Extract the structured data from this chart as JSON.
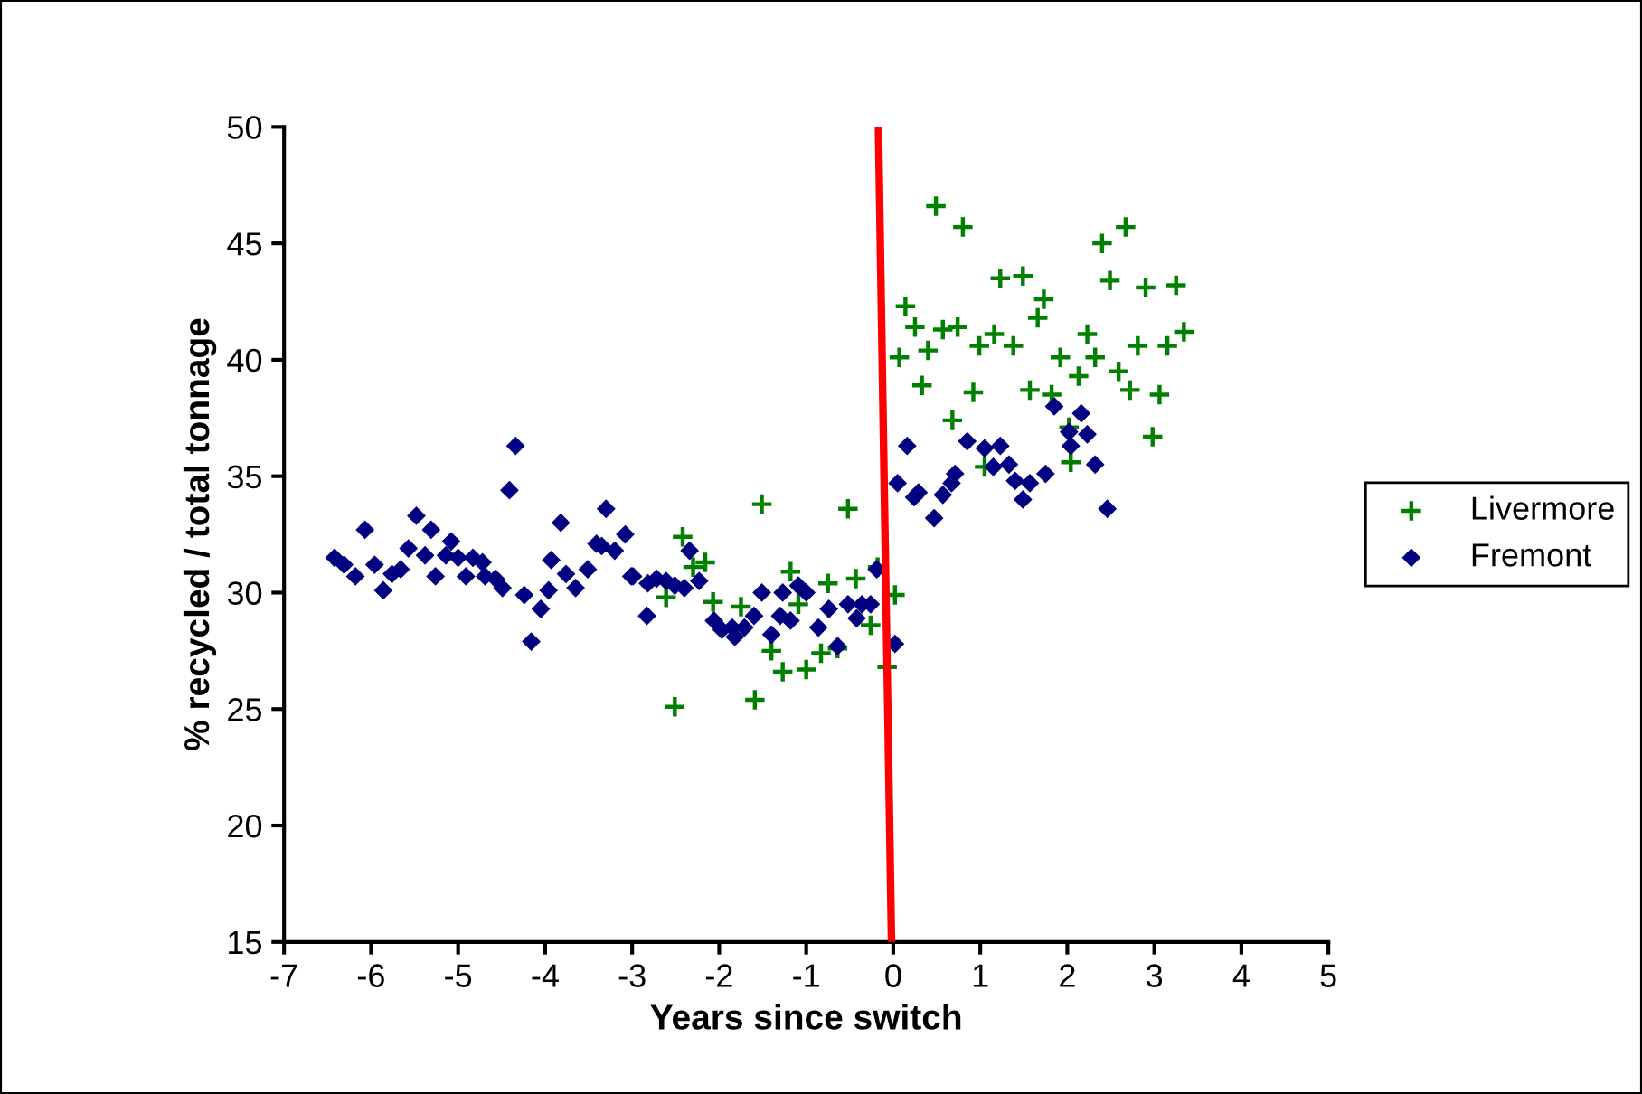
{
  "chart_data": {
    "type": "scatter",
    "xlabel": "Years since switch",
    "ylabel": "% recycled / total tonnage",
    "xlim": [
      -7,
      5
    ],
    "xticks": [
      -7,
      -6,
      -5,
      -4,
      -3,
      -2,
      -1,
      0,
      1,
      2,
      3,
      4,
      5
    ],
    "ylim": [
      15,
      50
    ],
    "yticks": [
      15,
      20,
      25,
      30,
      35,
      40,
      45,
      50
    ],
    "grid": false,
    "legend": "right",
    "series": [
      {
        "name": "Livermore",
        "color": "#008000",
        "marker": "cross",
        "x": [
          -1.51,
          -0.52,
          -2.42,
          -2.3,
          -2.16,
          -2.61,
          -1.18,
          -0.75,
          -0.43,
          -0.18,
          0.02,
          -2.07,
          -1.75,
          -1.09,
          -0.26,
          -1.4,
          -1.27,
          -1.0,
          -0.83,
          -0.64,
          -0.07,
          -2.51,
          -1.59,
          0.49,
          0.8,
          2.67,
          2.4,
          1.23,
          1.49,
          2.49,
          2.9,
          3.25,
          1.73,
          0.14,
          1.66,
          0.25,
          0.57,
          0.74,
          3.34,
          1.16,
          2.23,
          0.99,
          1.38,
          0.4,
          0.07,
          2.81,
          3.15,
          1.92,
          2.32,
          2.59,
          2.13,
          0.33,
          0.92,
          1.57,
          1.82,
          2.72,
          3.06,
          0.68,
          2.98,
          2.02,
          2.04,
          1.05
        ],
        "values": [
          33.8,
          33.6,
          32.4,
          31.1,
          31.3,
          29.8,
          30.9,
          30.4,
          30.6,
          31.1,
          29.9,
          29.6,
          29.4,
          29.5,
          28.6,
          27.5,
          26.6,
          26.7,
          27.4,
          27.6,
          26.8,
          25.1,
          25.4,
          46.6,
          45.7,
          45.7,
          45.0,
          43.5,
          43.6,
          43.4,
          43.1,
          43.2,
          42.6,
          42.3,
          41.8,
          41.4,
          41.3,
          41.4,
          41.2,
          41.1,
          41.1,
          40.6,
          40.6,
          40.4,
          40.1,
          40.6,
          40.6,
          40.1,
          40.1,
          39.5,
          39.3,
          38.9,
          38.6,
          38.7,
          38.5,
          38.7,
          38.5,
          37.4,
          36.7,
          37.1,
          35.6,
          35.4
        ]
      },
      {
        "name": "Fremont",
        "color": "#000080",
        "marker": "diamond",
        "x": [
          -4.34,
          -4.41,
          -6.07,
          -5.48,
          -5.31,
          -5.08,
          -5.57,
          -5.38,
          -5.14,
          -5.0,
          -4.83,
          -4.72,
          -6.42,
          -6.31,
          -6.18,
          -5.96,
          -5.66,
          -5.76,
          -5.86,
          -5.26,
          -4.91,
          -4.69,
          -4.57,
          -4.49,
          -4.24,
          -4.05,
          -4.16,
          -3.96,
          -3.93,
          -3.82,
          -3.76,
          -3.65,
          -3.51,
          -3.41,
          -3.3,
          -3.2,
          -3.08,
          -3.01,
          -3.35,
          -2.99,
          -2.82,
          -2.72,
          -2.61,
          -2.51,
          -2.4,
          -2.34,
          -2.23,
          -2.83,
          -2.06,
          -1.97,
          -1.85,
          -1.71,
          -1.82,
          -1.6,
          -1.51,
          -1.4,
          -1.3,
          -1.27,
          -1.09,
          -1.18,
          -1.0,
          -0.86,
          -0.74,
          -0.64,
          -0.52,
          -0.36,
          -0.26,
          -0.19,
          -0.42,
          0.02,
          0.05,
          0.24,
          0.16,
          1.85,
          2.16,
          0.85,
          1.05,
          1.23,
          2.02,
          2.23,
          2.04,
          0.29,
          0.57,
          0.71,
          0.67,
          1.15,
          1.33,
          1.4,
          1.57,
          1.75,
          1.49,
          2.32,
          2.46,
          0.47
        ],
        "values": [
          36.3,
          34.4,
          32.7,
          33.3,
          32.7,
          32.2,
          31.9,
          31.6,
          31.6,
          31.5,
          31.5,
          31.3,
          31.5,
          31.2,
          30.7,
          31.2,
          31.0,
          30.8,
          30.1,
          30.7,
          30.7,
          30.7,
          30.6,
          30.2,
          29.9,
          29.3,
          27.9,
          30.1,
          31.4,
          33.0,
          30.8,
          30.2,
          31.0,
          32.1,
          33.6,
          31.8,
          32.5,
          30.7,
          32.0,
          30.7,
          30.4,
          30.6,
          30.5,
          30.3,
          30.2,
          31.8,
          30.5,
          29.0,
          28.8,
          28.4,
          28.5,
          28.5,
          28.1,
          29.0,
          30.0,
          28.2,
          29.0,
          30.0,
          30.3,
          28.8,
          30.0,
          28.5,
          29.3,
          27.7,
          29.5,
          29.5,
          29.5,
          31.0,
          28.9,
          27.8,
          34.7,
          34.1,
          36.3,
          38.0,
          37.7,
          36.5,
          36.2,
          36.3,
          36.9,
          36.8,
          36.3,
          34.3,
          34.2,
          35.1,
          34.7,
          35.4,
          35.5,
          34.8,
          34.7,
          35.1,
          34.0,
          35.5,
          33.6,
          33.2
        ]
      },
      {
        "type": "line",
        "color": "#ff0000",
        "marker": "none",
        "x": [
          -0.17,
          -0.02
        ],
        "values": [
          50,
          15
        ]
      }
    ]
  }
}
